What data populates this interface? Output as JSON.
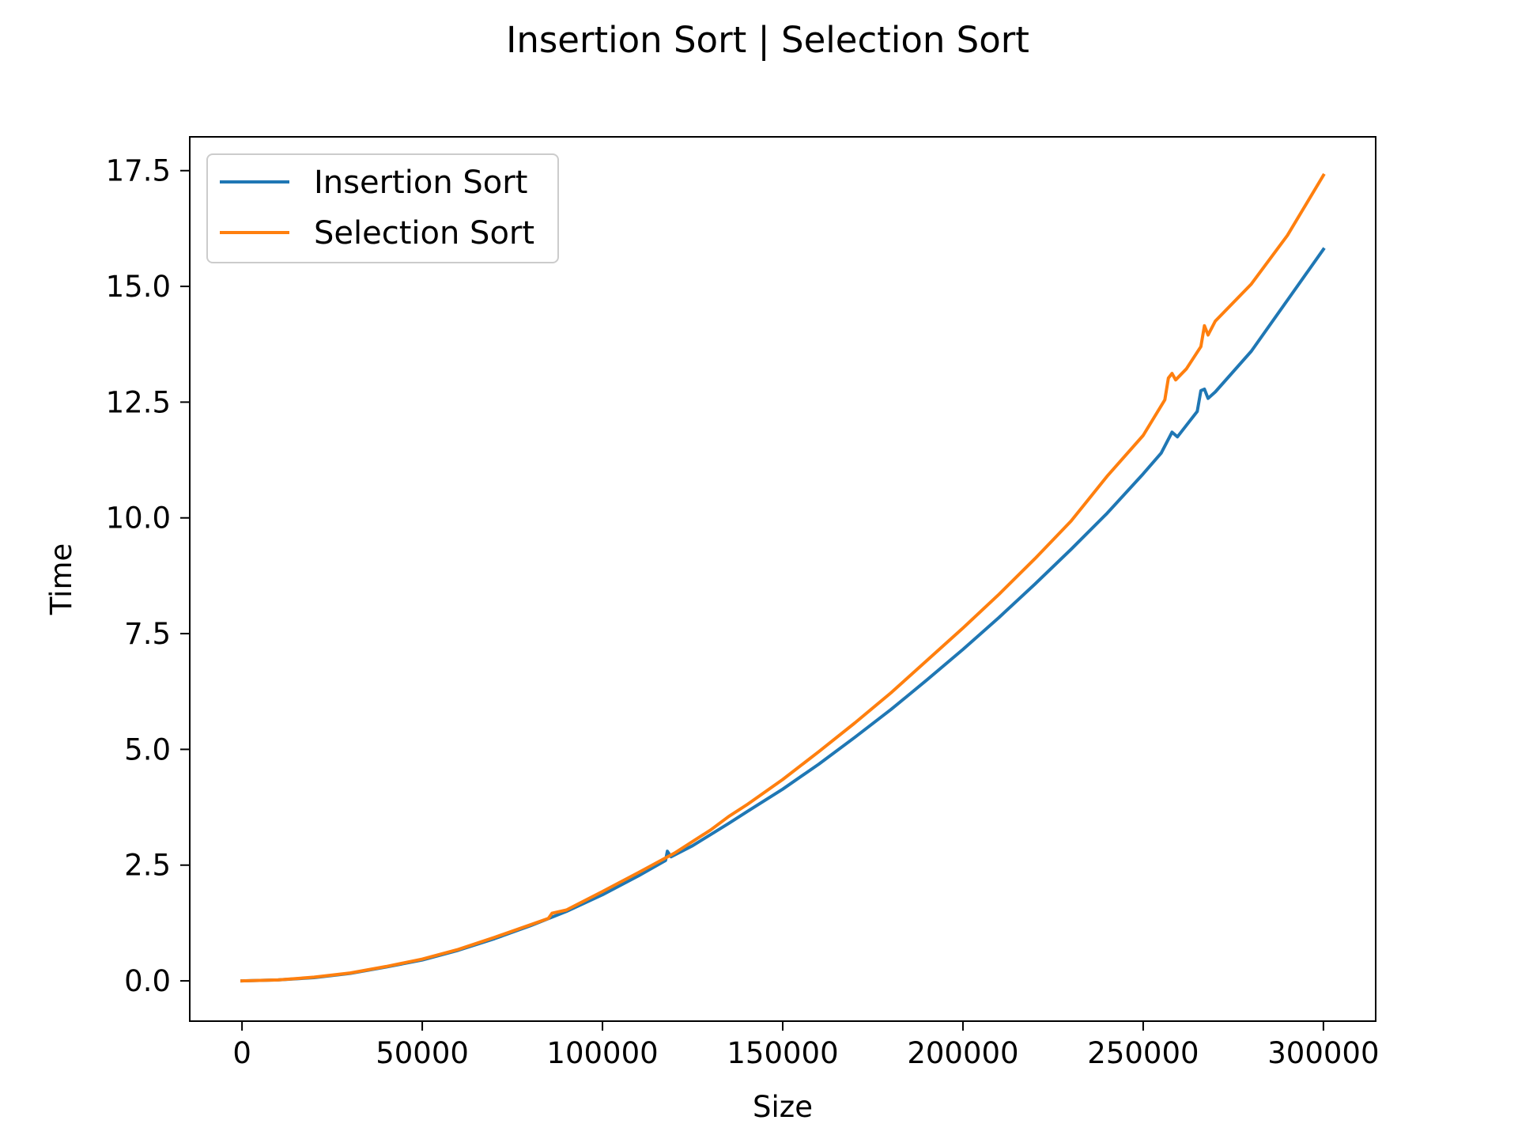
{
  "chart_data": {
    "type": "line",
    "title": "Insertion Sort | Selection Sort",
    "xlabel": "Size",
    "ylabel": "Time",
    "xlim": [
      -14500,
      314500
    ],
    "ylim": [
      -0.87,
      18.23
    ],
    "xticks": [
      0,
      50000,
      100000,
      150000,
      200000,
      250000,
      300000
    ],
    "xtick_labels": [
      "0",
      "50000",
      "100000",
      "150000",
      "200000",
      "250000",
      "300000"
    ],
    "yticks": [
      0.0,
      2.5,
      5.0,
      7.5,
      10.0,
      12.5,
      15.0,
      17.5
    ],
    "ytick_labels": [
      "0.0",
      "2.5",
      "5.0",
      "7.5",
      "10.0",
      "12.5",
      "15.0",
      "17.5"
    ],
    "grid": false,
    "legend_position": "upper-left",
    "series": [
      {
        "name": "Insertion Sort",
        "color": "#1f77b4",
        "points": [
          [
            0,
            0.0
          ],
          [
            10000,
            0.02
          ],
          [
            20000,
            0.07
          ],
          [
            30000,
            0.16
          ],
          [
            40000,
            0.3
          ],
          [
            50000,
            0.45
          ],
          [
            60000,
            0.66
          ],
          [
            70000,
            0.91
          ],
          [
            80000,
            1.19
          ],
          [
            90000,
            1.5
          ],
          [
            100000,
            1.86
          ],
          [
            110000,
            2.27
          ],
          [
            117500,
            2.6
          ],
          [
            118000,
            2.8
          ],
          [
            119000,
            2.68
          ],
          [
            125000,
            2.92
          ],
          [
            135000,
            3.4
          ],
          [
            140000,
            3.65
          ],
          [
            150000,
            4.14
          ],
          [
            160000,
            4.68
          ],
          [
            170000,
            5.26
          ],
          [
            180000,
            5.86
          ],
          [
            190000,
            6.5
          ],
          [
            200000,
            7.16
          ],
          [
            210000,
            7.85
          ],
          [
            220000,
            8.57
          ],
          [
            230000,
            9.32
          ],
          [
            240000,
            10.1
          ],
          [
            250000,
            10.95
          ],
          [
            255000,
            11.4
          ],
          [
            258000,
            11.85
          ],
          [
            259500,
            11.75
          ],
          [
            262000,
            12.0
          ],
          [
            265000,
            12.3
          ],
          [
            266000,
            12.75
          ],
          [
            267000,
            12.78
          ],
          [
            268000,
            12.58
          ],
          [
            270000,
            12.72
          ],
          [
            280000,
            13.6
          ],
          [
            290000,
            14.7
          ],
          [
            300000,
            15.8
          ]
        ]
      },
      {
        "name": "Selection Sort",
        "color": "#ff7f0e",
        "points": [
          [
            0,
            0.0
          ],
          [
            10000,
            0.02
          ],
          [
            20000,
            0.08
          ],
          [
            30000,
            0.17
          ],
          [
            40000,
            0.31
          ],
          [
            50000,
            0.47
          ],
          [
            60000,
            0.68
          ],
          [
            70000,
            0.94
          ],
          [
            80000,
            1.21
          ],
          [
            85000,
            1.35
          ],
          [
            86000,
            1.46
          ],
          [
            90000,
            1.53
          ],
          [
            100000,
            1.93
          ],
          [
            110000,
            2.34
          ],
          [
            120000,
            2.76
          ],
          [
            130000,
            3.26
          ],
          [
            135000,
            3.55
          ],
          [
            140000,
            3.8
          ],
          [
            150000,
            4.35
          ],
          [
            160000,
            4.95
          ],
          [
            170000,
            5.57
          ],
          [
            180000,
            6.22
          ],
          [
            190000,
            6.92
          ],
          [
            200000,
            7.62
          ],
          [
            210000,
            8.35
          ],
          [
            220000,
            9.12
          ],
          [
            230000,
            9.93
          ],
          [
            240000,
            10.9
          ],
          [
            250000,
            11.78
          ],
          [
            256000,
            12.55
          ],
          [
            257000,
            13.02
          ],
          [
            258000,
            13.12
          ],
          [
            259000,
            12.98
          ],
          [
            262000,
            13.22
          ],
          [
            266000,
            13.7
          ],
          [
            267000,
            14.15
          ],
          [
            268000,
            13.95
          ],
          [
            270000,
            14.25
          ],
          [
            280000,
            15.05
          ],
          [
            290000,
            16.1
          ],
          [
            300000,
            17.4
          ]
        ]
      }
    ]
  }
}
